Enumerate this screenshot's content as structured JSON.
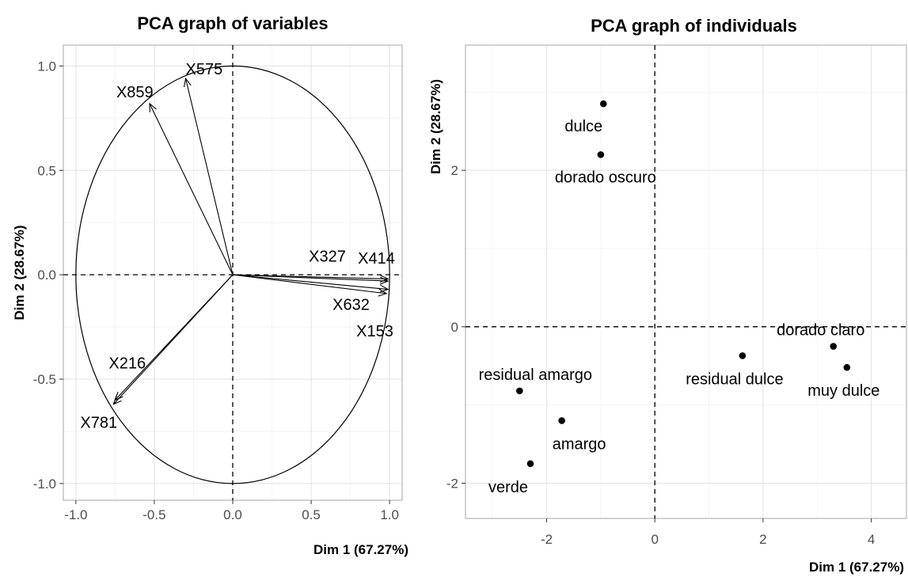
{
  "chart_data": [
    {
      "type": "scatter",
      "variant": "pca-correlation-circle",
      "title": "PCA graph of variables",
      "xlabel": "Dim 1 (67.27%)",
      "ylabel": "Dim 2 (28.67%)",
      "xlim": [
        -1.08,
        1.08
      ],
      "ylim": [
        -1.08,
        1.1
      ],
      "xticks": [
        -1.0,
        -0.5,
        0.0,
        0.5,
        1.0
      ],
      "xtick_labels": [
        "-1.0",
        "-0.5",
        "0.0",
        "0.5",
        "1.0"
      ],
      "yticks": [
        -1.0,
        -0.5,
        0.0,
        0.5,
        1.0
      ],
      "ytick_labels": [
        "-1.0",
        "-0.5",
        "0.0",
        "0.5",
        "1.0"
      ],
      "grid": true,
      "unit_circle": true,
      "vectors": [
        {
          "name": "X575",
          "x": -0.3,
          "y": 0.94
        },
        {
          "name": "X859",
          "x": -0.53,
          "y": 0.82
        },
        {
          "name": "X327",
          "x": 0.99,
          "y": -0.02
        },
        {
          "name": "X414",
          "x": 0.99,
          "y": -0.03
        },
        {
          "name": "X632",
          "x": 0.99,
          "y": -0.07
        },
        {
          "name": "X153",
          "x": 0.98,
          "y": -0.09
        },
        {
          "name": "X216",
          "x": -0.75,
          "y": -0.6
        },
        {
          "name": "X781",
          "x": -0.76,
          "y": -0.62
        }
      ]
    },
    {
      "type": "scatter",
      "variant": "pca-individuals",
      "title": "PCA graph of individuals",
      "xlabel": "Dim 1 (67.27%)",
      "ylabel": "Dim 2 (28.67%)",
      "xlim": [
        -3.5,
        4.65
      ],
      "ylim": [
        -2.45,
        3.6
      ],
      "xticks": [
        -2,
        0,
        2,
        4
      ],
      "xtick_labels": [
        "-2",
        "0",
        "2",
        "4"
      ],
      "yticks": [
        -2,
        0,
        2
      ],
      "ytick_labels": [
        "-2",
        "0",
        "2"
      ],
      "grid": true,
      "points": [
        {
          "label": "dulce",
          "x": -0.95,
          "y": 2.85
        },
        {
          "label": "dorado oscuro",
          "x": -1.0,
          "y": 2.2
        },
        {
          "label": "dorado claro",
          "x": 3.3,
          "y": -0.25
        },
        {
          "label": "residual dulce",
          "x": 1.62,
          "y": -0.37
        },
        {
          "label": "muy dulce",
          "x": 3.55,
          "y": -0.52
        },
        {
          "label": "residual amargo",
          "x": -2.5,
          "y": -0.82
        },
        {
          "label": "amargo",
          "x": -1.72,
          "y": -1.2
        },
        {
          "label": "verde",
          "x": -2.3,
          "y": -1.75
        }
      ]
    }
  ]
}
